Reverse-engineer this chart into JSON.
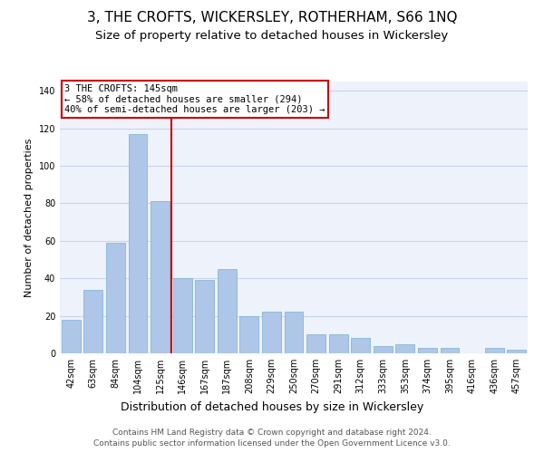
{
  "title": "3, THE CROFTS, WICKERSLEY, ROTHERHAM, S66 1NQ",
  "subtitle": "Size of property relative to detached houses in Wickersley",
  "xlabel": "Distribution of detached houses by size in Wickersley",
  "ylabel": "Number of detached properties",
  "categories": [
    "42sqm",
    "63sqm",
    "84sqm",
    "104sqm",
    "125sqm",
    "146sqm",
    "167sqm",
    "187sqm",
    "208sqm",
    "229sqm",
    "250sqm",
    "270sqm",
    "291sqm",
    "312sqm",
    "333sqm",
    "353sqm",
    "374sqm",
    "395sqm",
    "416sqm",
    "436sqm",
    "457sqm"
  ],
  "values": [
    18,
    34,
    59,
    117,
    81,
    40,
    39,
    45,
    20,
    22,
    22,
    10,
    10,
    8,
    4,
    5,
    3,
    3,
    0,
    3,
    2
  ],
  "bar_color": "#aec6e8",
  "bar_edge_color": "#7bafd4",
  "grid_color": "#c8d4e8",
  "background_color": "#eef2fa",
  "vline_color": "#cc0000",
  "annotation_text": "3 THE CROFTS: 145sqm\n← 58% of detached houses are smaller (294)\n40% of semi-detached houses are larger (203) →",
  "annotation_box_color": "#ffffff",
  "annotation_box_edge": "#cc0000",
  "footer1": "Contains HM Land Registry data © Crown copyright and database right 2024.",
  "footer2": "Contains public sector information licensed under the Open Government Licence v3.0.",
  "ylim": [
    0,
    145
  ],
  "yticks": [
    0,
    20,
    40,
    60,
    80,
    100,
    120,
    140
  ],
  "title_fontsize": 11,
  "subtitle_fontsize": 9.5,
  "ylabel_fontsize": 8,
  "xlabel_fontsize": 9,
  "tick_fontsize": 7,
  "annotation_fontsize": 7.5,
  "footer_fontsize": 6.5
}
